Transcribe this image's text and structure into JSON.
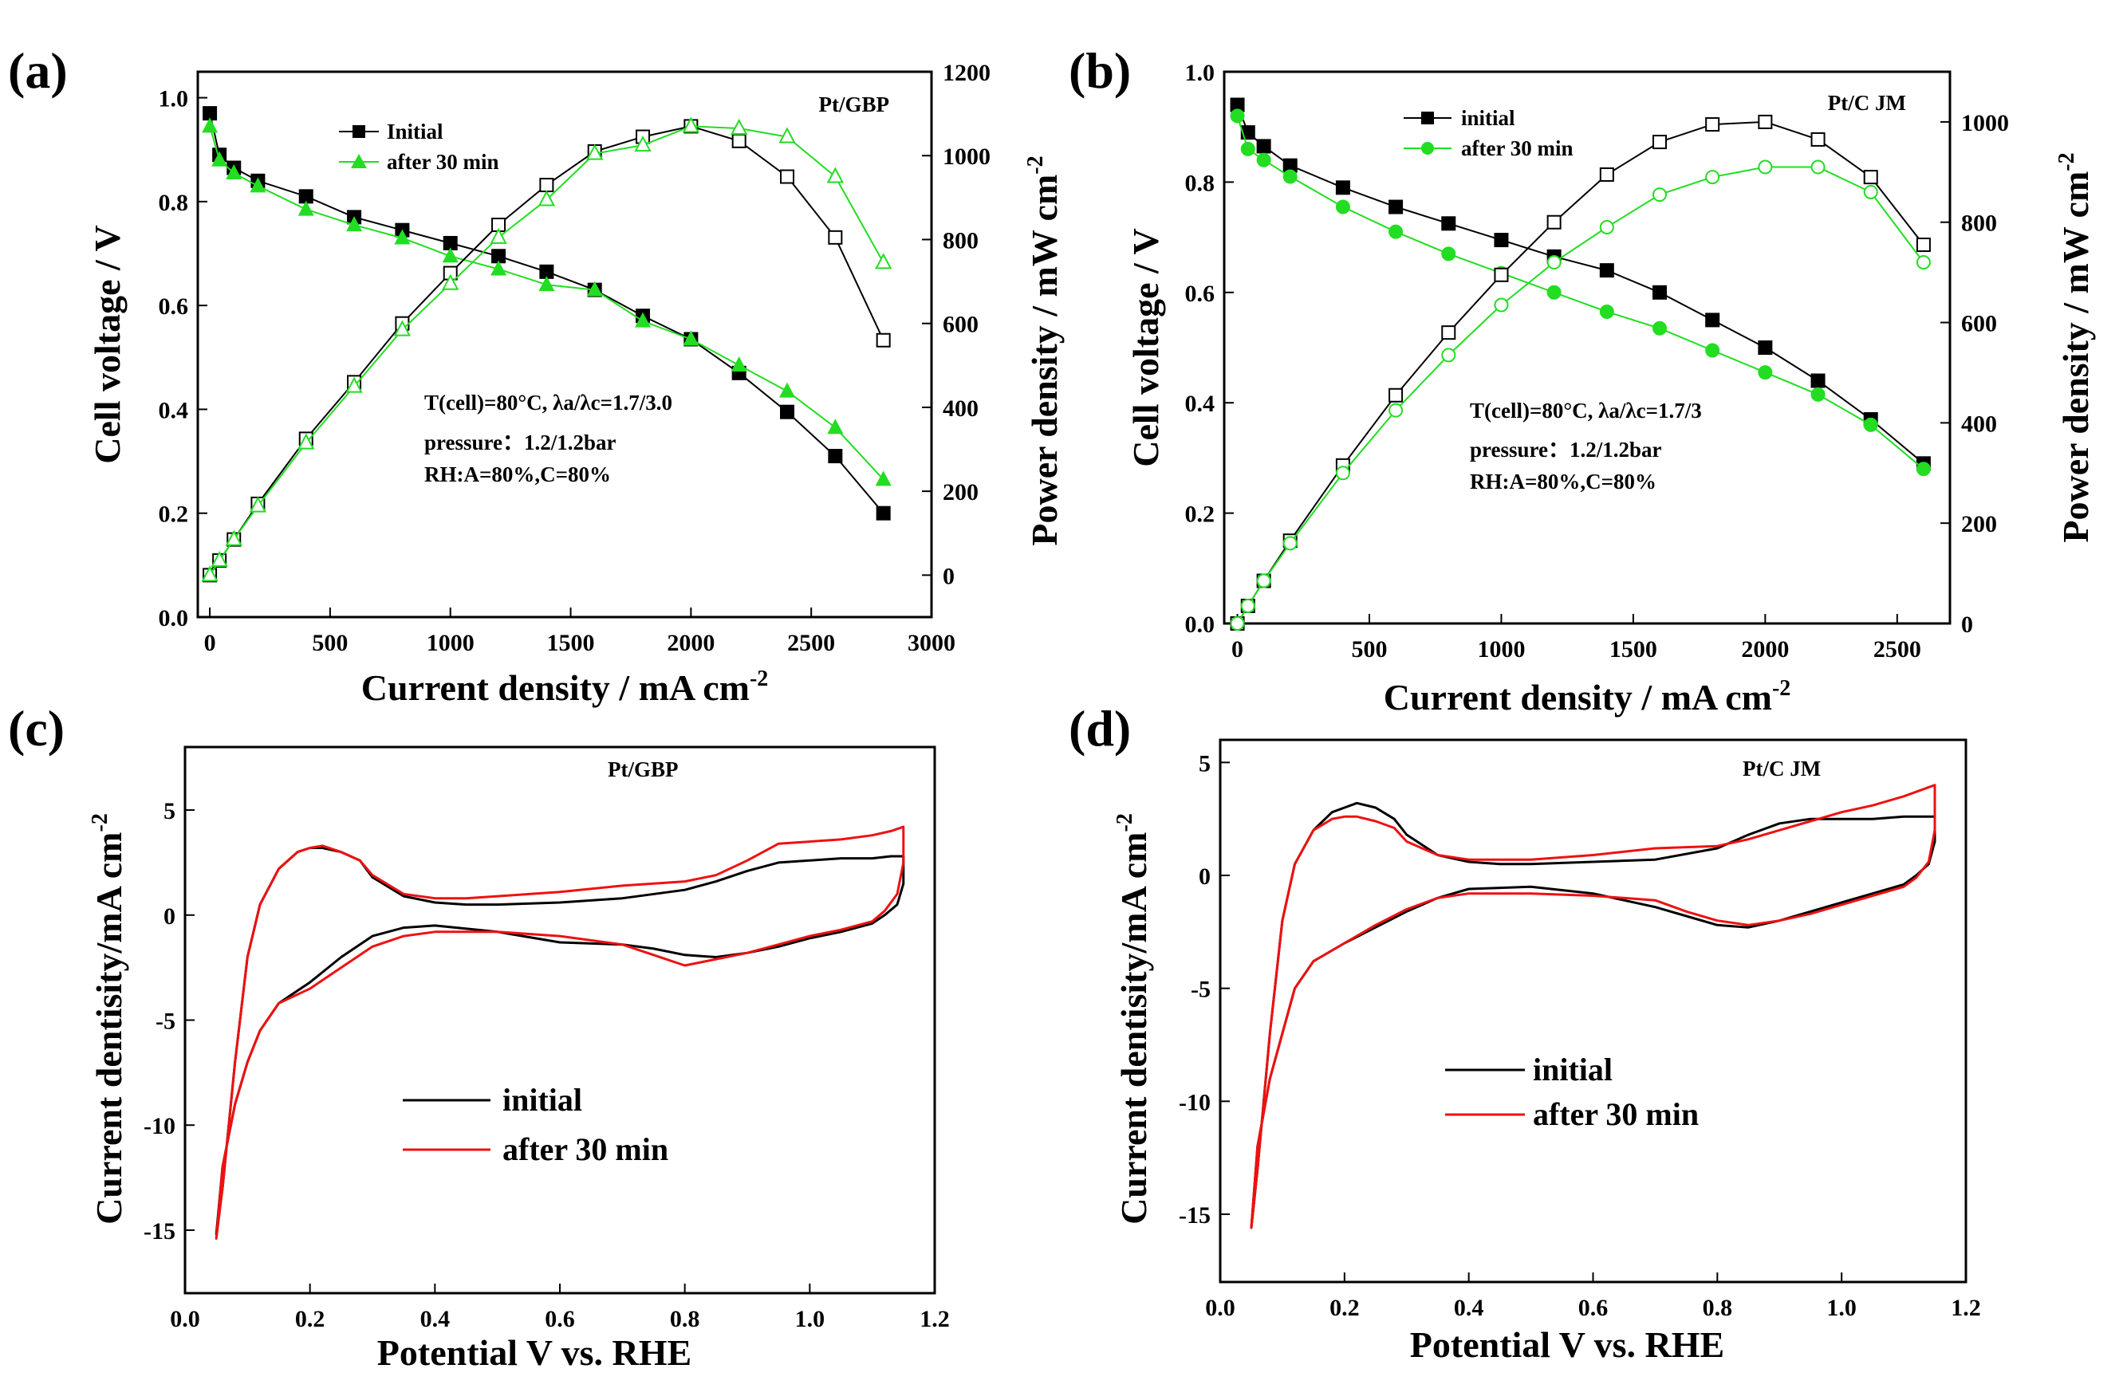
{
  "colors": {
    "initial": "#000000",
    "after": "#22dd22",
    "after_cv": "#ee1111",
    "axis": "#000000"
  },
  "chart_data": [
    {
      "id": "a",
      "type": "line",
      "panel_label": "(a)",
      "sample": "Pt/GBP",
      "xlabel": "Current density / mA cm",
      "xlabel_sup": "-2",
      "ylabel": "Cell voltage / V",
      "y2label": "Power density / mW cm",
      "y2label_sup": "-2",
      "xlim": [
        -50,
        3000
      ],
      "ylim": [
        0,
        1.05
      ],
      "y2lim": [
        -100,
        1200
      ],
      "xticks": [
        "0",
        "500",
        "1000",
        "1500",
        "2000",
        "2500",
        "3000"
      ],
      "yticks": [
        "0.0",
        "0.2",
        "0.4",
        "0.6",
        "0.8",
        "1.0"
      ],
      "y2ticks": [
        "0",
        "200",
        "400",
        "600",
        "800",
        "1000",
        "1200"
      ],
      "annotation": [
        "T(cell)=80°C, λa/λc=1.7/3.0",
        "pressure：1.2/1.2bar",
        "RH:A=80%,C=80%"
      ],
      "legend": [
        "Initial",
        "after 30 min"
      ],
      "x": [
        0,
        40,
        100,
        200,
        400,
        600,
        800,
        1000,
        1200,
        1400,
        1600,
        1800,
        2000,
        2200,
        2400,
        2600,
        2800
      ],
      "series": [
        {
          "name": "Initial",
          "axis": "left",
          "values": [
            0.97,
            0.89,
            0.865,
            0.84,
            0.81,
            0.77,
            0.745,
            0.72,
            0.695,
            0.665,
            0.63,
            0.58,
            0.535,
            0.47,
            0.395,
            0.31,
            0.2
          ]
        },
        {
          "name": "after 30 min",
          "axis": "left",
          "values": [
            0.945,
            0.88,
            0.855,
            0.83,
            0.785,
            0.755,
            0.73,
            0.695,
            0.67,
            0.64,
            0.63,
            0.57,
            0.535,
            0.485,
            0.435,
            0.365,
            0.265
          ]
        },
        {
          "name": "Initial power",
          "axis": "right",
          "values": [
            0,
            35,
            85,
            170,
            325,
            460,
            600,
            720,
            835,
            930,
            1010,
            1045,
            1070,
            1035,
            950,
            805,
            560
          ]
        },
        {
          "name": "after 30 min power",
          "axis": "right",
          "values": [
            0,
            35,
            85,
            165,
            315,
            450,
            585,
            695,
            805,
            895,
            1005,
            1025,
            1070,
            1065,
            1045,
            950,
            745
          ]
        }
      ]
    },
    {
      "id": "b",
      "type": "line",
      "panel_label": "(b)",
      "sample": "Pt/C JM",
      "xlabel": "Current density / mA cm",
      "xlabel_sup": "-2",
      "ylabel": "Cell voltage / V",
      "y2label": "Power density / mW cm",
      "y2label_sup": "-2",
      "xlim": [
        -50,
        2700
      ],
      "ylim": [
        0,
        1.0
      ],
      "y2lim": [
        0,
        1100
      ],
      "xticks": [
        "0",
        "500",
        "1000",
        "1500",
        "2000",
        "2500"
      ],
      "yticks": [
        "0.0",
        "0.2",
        "0.4",
        "0.6",
        "0.8",
        "1.0"
      ],
      "y2ticks": [
        "0",
        "200",
        "400",
        "600",
        "800",
        "1000"
      ],
      "annotation": [
        "T(cell)=80°C, λa/λc=1.7/3",
        "pressure：1.2/1.2bar",
        "RH:A=80%,C=80%"
      ],
      "legend": [
        "initial",
        "after 30 min"
      ],
      "x": [
        0,
        40,
        100,
        200,
        400,
        600,
        800,
        1000,
        1200,
        1400,
        1600,
        1800,
        2000,
        2200,
        2400,
        2600
      ],
      "series": [
        {
          "name": "initial",
          "axis": "left",
          "values": [
            0.94,
            0.89,
            0.865,
            0.83,
            0.79,
            0.755,
            0.725,
            0.695,
            0.665,
            0.64,
            0.6,
            0.55,
            0.5,
            0.44,
            0.37,
            0.29
          ]
        },
        {
          "name": "after 30 min",
          "axis": "left",
          "values": [
            0.92,
            0.86,
            0.84,
            0.81,
            0.755,
            0.71,
            0.67,
            0.635,
            0.6,
            0.565,
            0.535,
            0.495,
            0.455,
            0.415,
            0.36,
            0.28
          ]
        },
        {
          "name": "initial power",
          "axis": "right",
          "values": [
            0,
            35,
            85,
            165,
            315,
            455,
            580,
            695,
            800,
            895,
            960,
            995,
            1000,
            965,
            890,
            755
          ]
        },
        {
          "name": "after 30 min power",
          "axis": "right",
          "values": [
            0,
            35,
            85,
            160,
            300,
            425,
            535,
            635,
            720,
            790,
            855,
            890,
            910,
            910,
            860,
            720
          ]
        }
      ]
    },
    {
      "id": "c",
      "type": "line",
      "panel_label": "(c)",
      "sample": "Pt/GBP",
      "xlabel": "Potential V vs. RHE",
      "ylabel": "Current dentisity/mA cm",
      "ylabel_sup": "-2",
      "xlim": [
        0.0,
        1.2
      ],
      "ylim": [
        -18,
        8
      ],
      "xticks": [
        "0.0",
        "0.2",
        "0.4",
        "0.6",
        "0.8",
        "1.0",
        "1.2"
      ],
      "yticks": [
        "-15",
        "-10",
        "-5",
        "0",
        "5"
      ],
      "legend": [
        "initial",
        "after 30 min"
      ],
      "series": [
        {
          "name": "initial",
          "x": [
            0.05,
            0.06,
            0.08,
            0.1,
            0.12,
            0.15,
            0.18,
            0.2,
            0.22,
            0.25,
            0.28,
            0.3,
            0.35,
            0.4,
            0.45,
            0.5,
            0.6,
            0.7,
            0.8,
            0.85,
            0.9,
            0.95,
            1.0,
            1.05,
            1.1,
            1.13,
            1.15,
            1.15,
            1.14,
            1.12,
            1.1,
            1.05,
            1.0,
            0.95,
            0.9,
            0.85,
            0.8,
            0.75,
            0.7,
            0.6,
            0.5,
            0.4,
            0.35,
            0.3,
            0.25,
            0.2,
            0.15,
            0.12,
            0.1,
            0.08,
            0.06,
            0.05
          ],
          "y": [
            -15.2,
            -13.0,
            -7.0,
            -2.0,
            0.5,
            2.2,
            3.0,
            3.2,
            3.2,
            3.0,
            2.6,
            1.8,
            0.9,
            0.6,
            0.5,
            0.5,
            0.6,
            0.8,
            1.2,
            1.6,
            2.1,
            2.5,
            2.6,
            2.7,
            2.7,
            2.8,
            2.8,
            1.5,
            0.5,
            0.0,
            -0.4,
            -0.8,
            -1.1,
            -1.5,
            -1.8,
            -2.0,
            -1.9,
            -1.6,
            -1.4,
            -1.3,
            -0.8,
            -0.5,
            -0.6,
            -1.0,
            -2.0,
            -3.2,
            -4.2,
            -5.5,
            -7.0,
            -9.0,
            -12.0,
            -15.2
          ]
        },
        {
          "name": "after 30 min",
          "x": [
            0.05,
            0.06,
            0.08,
            0.1,
            0.12,
            0.15,
            0.18,
            0.2,
            0.22,
            0.25,
            0.28,
            0.3,
            0.35,
            0.4,
            0.45,
            0.5,
            0.6,
            0.7,
            0.8,
            0.85,
            0.9,
            0.95,
            1.0,
            1.05,
            1.1,
            1.13,
            1.15,
            1.15,
            1.14,
            1.12,
            1.1,
            1.05,
            1.0,
            0.95,
            0.9,
            0.85,
            0.8,
            0.75,
            0.7,
            0.6,
            0.5,
            0.4,
            0.35,
            0.3,
            0.25,
            0.2,
            0.15,
            0.12,
            0.1,
            0.08,
            0.06,
            0.05
          ],
          "y": [
            -15.4,
            -13.0,
            -7.0,
            -2.0,
            0.5,
            2.2,
            3.0,
            3.2,
            3.3,
            3.0,
            2.6,
            1.9,
            1.0,
            0.8,
            0.8,
            0.9,
            1.1,
            1.4,
            1.6,
            1.9,
            2.6,
            3.4,
            3.5,
            3.6,
            3.8,
            4.0,
            4.2,
            2.5,
            1.0,
            0.2,
            -0.3,
            -0.7,
            -1.0,
            -1.4,
            -1.8,
            -2.1,
            -2.4,
            -1.9,
            -1.4,
            -1.0,
            -0.8,
            -0.8,
            -1.0,
            -1.5,
            -2.5,
            -3.5,
            -4.2,
            -5.5,
            -7.0,
            -9.0,
            -12.0,
            -15.4
          ]
        }
      ]
    },
    {
      "id": "d",
      "type": "line",
      "panel_label": "(d)",
      "sample": "Pt/C JM",
      "xlabel": "Potential V vs. RHE",
      "ylabel": "Current dentisity/mA cm",
      "ylabel_sup": "-2",
      "xlim": [
        0.0,
        1.2
      ],
      "ylim": [
        -18,
        6
      ],
      "xticks": [
        "0.0",
        "0.2",
        "0.4",
        "0.6",
        "0.8",
        "1.0",
        "1.2"
      ],
      "yticks": [
        "-15",
        "-10",
        "-5",
        "0",
        "5"
      ],
      "legend": [
        "initial",
        "after 30 min"
      ],
      "series": [
        {
          "name": "initial",
          "x": [
            0.05,
            0.06,
            0.08,
            0.1,
            0.12,
            0.15,
            0.18,
            0.2,
            0.22,
            0.25,
            0.28,
            0.3,
            0.35,
            0.4,
            0.45,
            0.5,
            0.6,
            0.7,
            0.8,
            0.85,
            0.9,
            0.95,
            1.0,
            1.05,
            1.1,
            1.13,
            1.15,
            1.15,
            1.14,
            1.12,
            1.1,
            1.05,
            1.0,
            0.95,
            0.9,
            0.85,
            0.8,
            0.75,
            0.7,
            0.6,
            0.5,
            0.4,
            0.35,
            0.3,
            0.25,
            0.2,
            0.15,
            0.12,
            0.1,
            0.08,
            0.06,
            0.05
          ],
          "y": [
            -15.6,
            -13.0,
            -7.0,
            -2.0,
            0.5,
            2.0,
            2.8,
            3.0,
            3.2,
            3.0,
            2.5,
            1.8,
            0.9,
            0.6,
            0.5,
            0.5,
            0.6,
            0.7,
            1.2,
            1.8,
            2.3,
            2.5,
            2.5,
            2.5,
            2.6,
            2.6,
            2.6,
            1.5,
            0.5,
            0.0,
            -0.4,
            -0.8,
            -1.2,
            -1.6,
            -2.0,
            -2.3,
            -2.2,
            -1.8,
            -1.4,
            -0.8,
            -0.5,
            -0.6,
            -1.0,
            -1.6,
            -2.3,
            -3.0,
            -3.8,
            -5.0,
            -7.0,
            -9.0,
            -12.0,
            -15.6
          ]
        },
        {
          "name": "after 30 min",
          "x": [
            0.05,
            0.06,
            0.08,
            0.1,
            0.12,
            0.15,
            0.18,
            0.2,
            0.22,
            0.25,
            0.28,
            0.3,
            0.35,
            0.4,
            0.45,
            0.5,
            0.6,
            0.7,
            0.8,
            0.85,
            0.9,
            0.95,
            1.0,
            1.05,
            1.1,
            1.13,
            1.15,
            1.15,
            1.14,
            1.12,
            1.1,
            1.05,
            1.0,
            0.95,
            0.9,
            0.85,
            0.8,
            0.75,
            0.7,
            0.6,
            0.5,
            0.4,
            0.35,
            0.3,
            0.25,
            0.2,
            0.15,
            0.12,
            0.1,
            0.08,
            0.06,
            0.05
          ],
          "y": [
            -15.6,
            -13.0,
            -7.0,
            -2.0,
            0.5,
            2.0,
            2.5,
            2.6,
            2.6,
            2.4,
            2.1,
            1.5,
            0.9,
            0.7,
            0.7,
            0.7,
            0.9,
            1.2,
            1.3,
            1.6,
            2.0,
            2.4,
            2.8,
            3.1,
            3.5,
            3.8,
            4.0,
            2.0,
            0.6,
            -0.1,
            -0.5,
            -0.9,
            -1.3,
            -1.7,
            -2.0,
            -2.2,
            -2.0,
            -1.6,
            -1.1,
            -0.9,
            -0.8,
            -0.8,
            -1.0,
            -1.5,
            -2.2,
            -3.0,
            -3.8,
            -5.0,
            -7.0,
            -9.0,
            -12.0,
            -15.6
          ]
        }
      ]
    }
  ]
}
